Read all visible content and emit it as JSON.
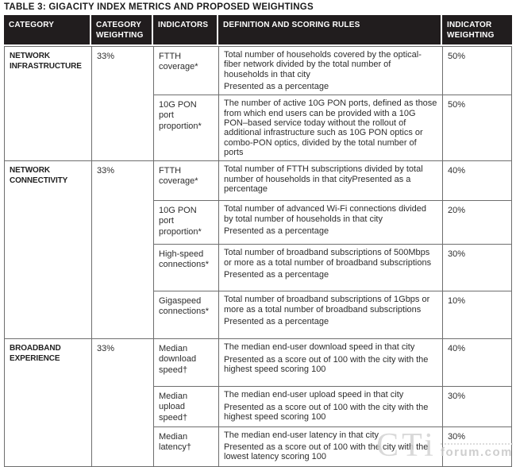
{
  "title": "TABLE 3: GIGACITY INDEX METRICS AND PROPOSED WEIGHTINGS",
  "table": {
    "headers": [
      "CATEGORY",
      "CATEGORY WEIGHTING",
      "INDICATORS",
      "DEFINITION AND SCORING RULES",
      "INDICATOR WEIGHTING"
    ],
    "sections": [
      {
        "category": "NETWORK INFRASTRUCTURE",
        "category_weighting": "33%",
        "rows": [
          {
            "indicator": "FTTH coverage*",
            "definition": [
              "Total number of households covered by the optical-fiber network divided by the total number of households in that city",
              "Presented as a percentage"
            ],
            "indicator_weighting": "50%"
          },
          {
            "indicator": "10G PON port proportion*",
            "definition": [
              "The number of active 10G PON ports, defined as those from which end users can be provided with a 10G PON–based service today without the rollout of additional infrastructure such as 10G PON optics or combo-PON optics, divided by the total number of ports"
            ],
            "indicator_weighting": "50%"
          }
        ]
      },
      {
        "category": "NETWORK CONNECTIVITY",
        "category_weighting": "33%",
        "rows": [
          {
            "indicator": "FTTH coverage*",
            "definition": [
              "Total number of FTTH subscriptions divided by total number of households in that cityPresented as a percentage"
            ],
            "indicator_weighting": "40%"
          },
          {
            "indicator": "10G PON port proportion*",
            "definition": [
              "Total number of advanced Wi-Fi connections divided by total number of households in that city",
              "Presented as a percentage"
            ],
            "indicator_weighting": "20%"
          },
          {
            "indicator": "High-speed connections*",
            "definition": [
              "Total number of broadband subscriptions of 500Mbps or more as a total number of broadband subscriptions",
              "Presented as a percentage"
            ],
            "indicator_weighting": "30%"
          },
          {
            "indicator": "Gigaspeed connections*",
            "definition": [
              "Total number of broadband subscriptions of 1Gbps or more as a total number of broadband subscriptions",
              "Presented as a percentage"
            ],
            "indicator_weighting": "10%"
          }
        ]
      },
      {
        "category": "BROADBAND EXPERIENCE",
        "category_weighting": "33%",
        "rows": [
          {
            "indicator": "Median download speed†",
            "definition": [
              "The median end-user download speed in that city",
              "Presented as a score out of 100 with the city with the highest speed scoring 100"
            ],
            "indicator_weighting": "40%"
          },
          {
            "indicator": "Median upload speed†",
            "definition": [
              "The median end-user upload speed in that city",
              "Presented as a score out of 100 with the city with the highest speed scoring 100"
            ],
            "indicator_weighting": "30%"
          },
          {
            "indicator": "Median latency†",
            "definition": [
              "The median end-user latency in that city",
              "Presented as a score out of 100 with the city with the lowest latency scoring 100"
            ],
            "indicator_weighting": "30%"
          }
        ]
      }
    ]
  },
  "watermark": {
    "big_text": "CTi",
    "small_text": "forum.com"
  },
  "colors": {
    "header_bg": "#211d1e",
    "header_text": "#ffffff",
    "body_text": "#2d2d2d",
    "border": "#6e6e6e",
    "watermark": "#d3d3d3"
  }
}
